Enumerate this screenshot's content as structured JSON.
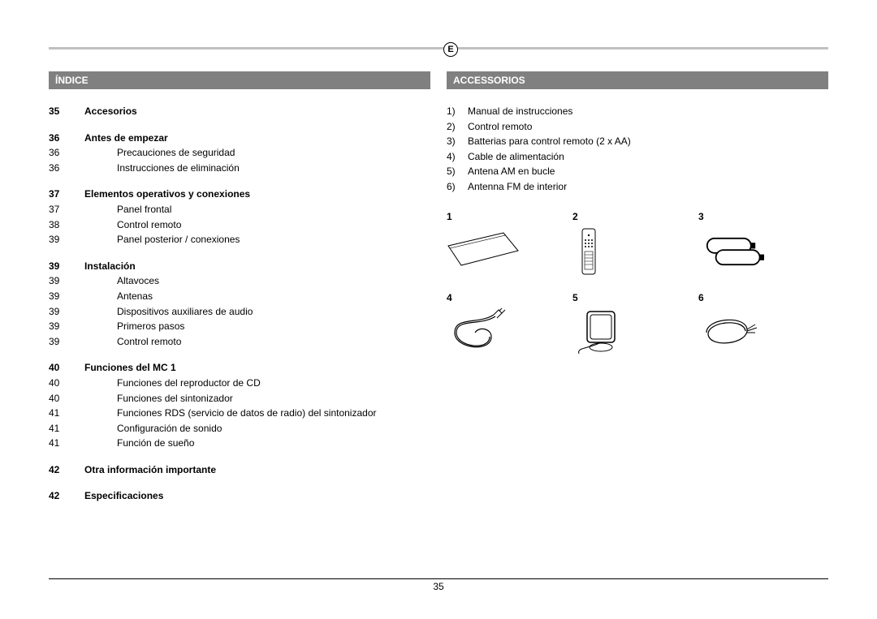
{
  "language_badge": "E",
  "page_number": "35",
  "left": {
    "header": "ÍNDICE",
    "sections": [
      {
        "page": "35",
        "title": "Accesorios",
        "items": []
      },
      {
        "page": "36",
        "title": "Antes de empezar",
        "items": [
          {
            "page": "36",
            "text": "Precauciones de seguridad"
          },
          {
            "page": "36",
            "text": "Instrucciones de eliminación"
          }
        ]
      },
      {
        "page": "37",
        "title": "Elementos operativos y conexiones",
        "items": [
          {
            "page": "37",
            "text": "Panel frontal"
          },
          {
            "page": "38",
            "text": "Control remoto"
          },
          {
            "page": "39",
            "text": "Panel posterior / conexiones"
          }
        ]
      },
      {
        "page": "39",
        "title": "Instalación",
        "items": [
          {
            "page": "39",
            "text": "Altavoces"
          },
          {
            "page": "39",
            "text": "Antenas"
          },
          {
            "page": "39",
            "text": "Dispositivos auxiliares de audio"
          },
          {
            "page": "39",
            "text": "Primeros pasos"
          },
          {
            "page": "39",
            "text": "Control remoto"
          }
        ]
      },
      {
        "page": "40",
        "title": "Funciones del MC 1",
        "items": [
          {
            "page": "40",
            "text": "Funciones del reproductor de CD"
          },
          {
            "page": "40",
            "text": "Funciones del sintonizador"
          },
          {
            "page": "41",
            "text": "Funciones RDS (servicio de datos de radio) del sintonizador"
          },
          {
            "page": "41",
            "text": "Configuración de sonido"
          },
          {
            "page": "41",
            "text": "Función de sueño"
          }
        ]
      },
      {
        "page": "42",
        "title": "Otra información importante",
        "items": []
      },
      {
        "page": "42",
        "title": "Especificaciones",
        "items": []
      }
    ]
  },
  "right": {
    "header": "ACCESSORIOS",
    "list": [
      {
        "num": "1)",
        "text": "Manual de instrucciones"
      },
      {
        "num": "2)",
        "text": "Control remoto"
      },
      {
        "num": "3)",
        "text": "Batterias para control remoto (2 x AA)"
      },
      {
        "num": "4)",
        "text": "Cable de alimentación"
      },
      {
        "num": "5)",
        "text": "Antena AM en bucle"
      },
      {
        "num": "6)",
        "text": "Antenna FM de interior"
      }
    ],
    "grid": {
      "row1_nums": [
        "1",
        "2",
        "3"
      ],
      "row2_nums": [
        "4",
        "5",
        "6"
      ]
    }
  },
  "colors": {
    "header_bg": "#808080",
    "header_fg": "#ffffff",
    "topbar": "#c0c0c0",
    "text": "#000000",
    "bg": "#ffffff"
  }
}
